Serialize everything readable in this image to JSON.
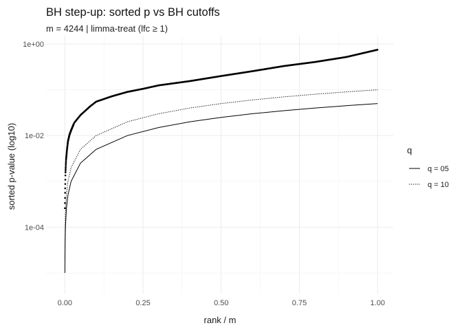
{
  "title": "BH step-up: sorted p vs BH cutoffs",
  "subtitle": "m = 4244  |  limma-treat (lfc ≥ 1)",
  "chart_data": {
    "type": "line",
    "title": "BH step-up: sorted p vs BH cutoffs",
    "subtitle": "m = 4244  |  limma-treat (lfc ≥ 1)",
    "xlabel": "rank / m",
    "ylabel": "sorted p-value (log10)",
    "xlim": [
      -0.06,
      1.05
    ],
    "ylim_log10": [
      -5.45,
      0.18
    ],
    "y_scale": "log10",
    "x_ticks": [
      0.0,
      0.25,
      0.5,
      0.75,
      1.0
    ],
    "x_tick_labels": [
      "0.00",
      "0.25",
      "0.50",
      "0.75",
      "1.00"
    ],
    "y_ticks": [
      0.0001,
      0.01,
      1
    ],
    "y_tick_labels": [
      "1e-04",
      "1e-02",
      "1e+00"
    ],
    "grid": true,
    "legend": {
      "title": "q",
      "position": "right",
      "entries": [
        {
          "label": "q = 05",
          "dash": "solid"
        },
        {
          "label": "q = 10",
          "dash": "dotted"
        }
      ]
    },
    "m": 4244,
    "series": [
      {
        "kind": "sorted-p",
        "x": [
          0.0002,
          0.001,
          0.002,
          0.004,
          0.007,
          0.01,
          0.015,
          0.02,
          0.03,
          0.05,
          0.08,
          0.1,
          0.15,
          0.2,
          0.25,
          0.3,
          0.4,
          0.5,
          0.6,
          0.7,
          0.8,
          0.9,
          1.0
        ],
        "y": [
          0.00025,
          0.0006,
          0.0015,
          0.003,
          0.005,
          0.0075,
          0.0105,
          0.013,
          0.019,
          0.028,
          0.043,
          0.055,
          0.072,
          0.09,
          0.105,
          0.125,
          0.155,
          0.2,
          0.255,
          0.33,
          0.405,
          0.52,
          0.75
        ]
      },
      {
        "name": "q = 05",
        "dash": "solid",
        "x": [
          0.0002,
          0.001,
          0.002,
          0.005,
          0.01,
          0.02,
          0.05,
          0.1,
          0.2,
          0.3,
          0.4,
          0.5,
          0.6,
          0.7,
          0.8,
          0.9,
          1.0
        ],
        "y": [
          1e-05,
          5e-05,
          0.0001,
          0.00025,
          0.0005,
          0.001,
          0.0025,
          0.005,
          0.01,
          0.015,
          0.02,
          0.025,
          0.03,
          0.035,
          0.04,
          0.045,
          0.05
        ]
      },
      {
        "name": "q = 10",
        "dash": "dotted",
        "x": [
          0.0002,
          0.001,
          0.002,
          0.005,
          0.01,
          0.02,
          0.05,
          0.1,
          0.2,
          0.3,
          0.4,
          0.5,
          0.6,
          0.7,
          0.8,
          0.9,
          1.0
        ],
        "y": [
          2e-05,
          0.0001,
          0.0002,
          0.0005,
          0.001,
          0.002,
          0.005,
          0.01,
          0.02,
          0.03,
          0.04,
          0.05,
          0.06,
          0.07,
          0.08,
          0.09,
          0.1
        ]
      }
    ]
  }
}
